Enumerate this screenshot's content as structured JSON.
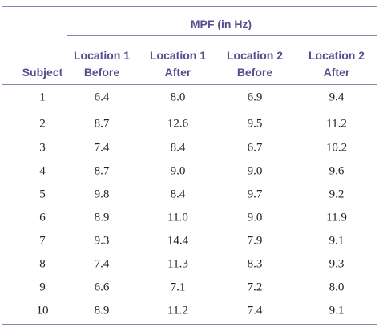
{
  "table": {
    "group_header": "MPF (in Hz)",
    "columns": [
      [
        "Subject"
      ],
      [
        "Location 1",
        "Before"
      ],
      [
        "Location 1",
        "After"
      ],
      [
        "Location 2",
        "Before"
      ],
      [
        "Location 2",
        "After"
      ]
    ],
    "rows": [
      [
        "1",
        "6.4",
        "8.0",
        "6.9",
        "9.4"
      ],
      [
        "2",
        "8.7",
        "12.6",
        "9.5",
        "11.2"
      ],
      [
        "3",
        "7.4",
        "8.4",
        "6.7",
        "10.2"
      ],
      [
        "4",
        "8.7",
        "9.0",
        "9.0",
        "9.6"
      ],
      [
        "5",
        "9.8",
        "8.4",
        "9.7",
        "9.2"
      ],
      [
        "6",
        "8.9",
        "11.0",
        "9.0",
        "11.9"
      ],
      [
        "7",
        "9.3",
        "14.4",
        "7.9",
        "9.1"
      ],
      [
        "8",
        "7.4",
        "11.3",
        "8.3",
        "9.3"
      ],
      [
        "9",
        "6.6",
        "7.1",
        "7.2",
        "8.0"
      ],
      [
        "10",
        "8.9",
        "11.2",
        "7.4",
        "9.1"
      ]
    ]
  }
}
